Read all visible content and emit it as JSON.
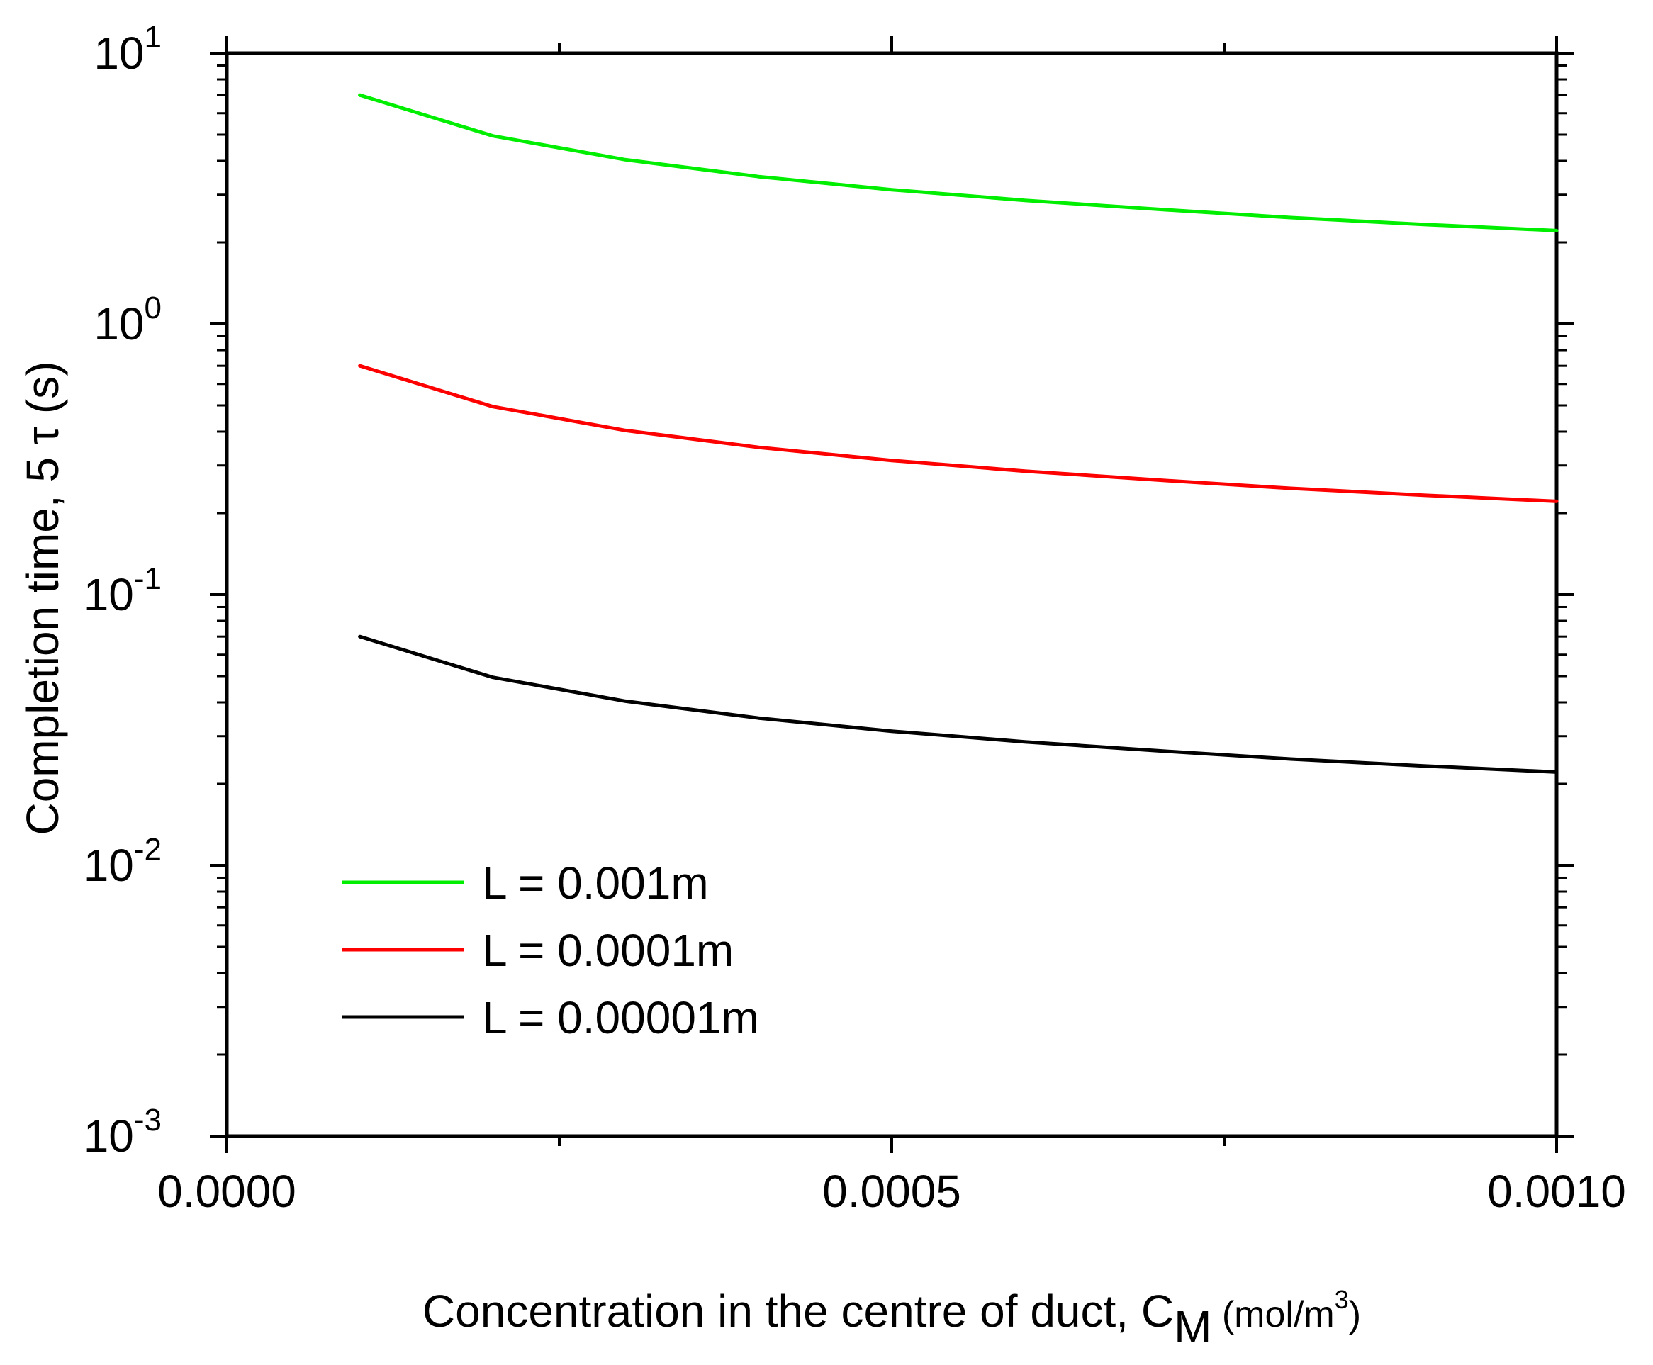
{
  "chart_data": {
    "type": "line",
    "title": "",
    "xlabel": "Concentration in the centre of duct, C",
    "xlabel_sub": "M",
    "xlabel_unit_pre": " (mol/m",
    "xlabel_unit_sup": "3",
    "xlabel_unit_post": ")",
    "ylabel": "Completion time, 5 τ (s)",
    "xlim": [
      0,
      0.001
    ],
    "ylim": [
      0.001,
      10
    ],
    "yscale": "log",
    "x_ticks": [
      {
        "value": 0.0,
        "label": "0.0000"
      },
      {
        "value": 0.0005,
        "label": "0.0005"
      },
      {
        "value": 0.001,
        "label": "0.0010"
      }
    ],
    "y_ticks": [
      {
        "value": 10,
        "base": "10",
        "exp": "1"
      },
      {
        "value": 1,
        "base": "10",
        "exp": "0"
      },
      {
        "value": 0.1,
        "base": "10",
        "exp": "-1"
      },
      {
        "value": 0.01,
        "base": "10",
        "exp": "-2"
      },
      {
        "value": 0.001,
        "base": "10",
        "exp": "-3"
      }
    ],
    "legend_position": "lower-left",
    "series": [
      {
        "name": "L = 0.001m",
        "color": "#00ee00",
        "x": [
          0.0001,
          0.0002,
          0.0003,
          0.0004,
          0.0005,
          0.0006,
          0.0007,
          0.0008,
          0.0009,
          0.001
        ],
        "y": [
          7.0,
          4.95,
          4.04,
          3.5,
          3.13,
          2.86,
          2.65,
          2.47,
          2.33,
          2.21
        ]
      },
      {
        "name": "L = 0.0001m",
        "color": "#ff0000",
        "x": [
          0.0001,
          0.0002,
          0.0003,
          0.0004,
          0.0005,
          0.0006,
          0.0007,
          0.0008,
          0.0009,
          0.001
        ],
        "y": [
          0.7,
          0.495,
          0.404,
          0.35,
          0.313,
          0.286,
          0.265,
          0.247,
          0.233,
          0.221
        ]
      },
      {
        "name": "L = 0.00001m",
        "color": "#000000",
        "x": [
          0.0001,
          0.0002,
          0.0003,
          0.0004,
          0.0005,
          0.0006,
          0.0007,
          0.0008,
          0.0009,
          0.001
        ],
        "y": [
          0.07,
          0.0495,
          0.0404,
          0.035,
          0.0313,
          0.0286,
          0.0265,
          0.0247,
          0.0233,
          0.0221
        ]
      }
    ]
  }
}
